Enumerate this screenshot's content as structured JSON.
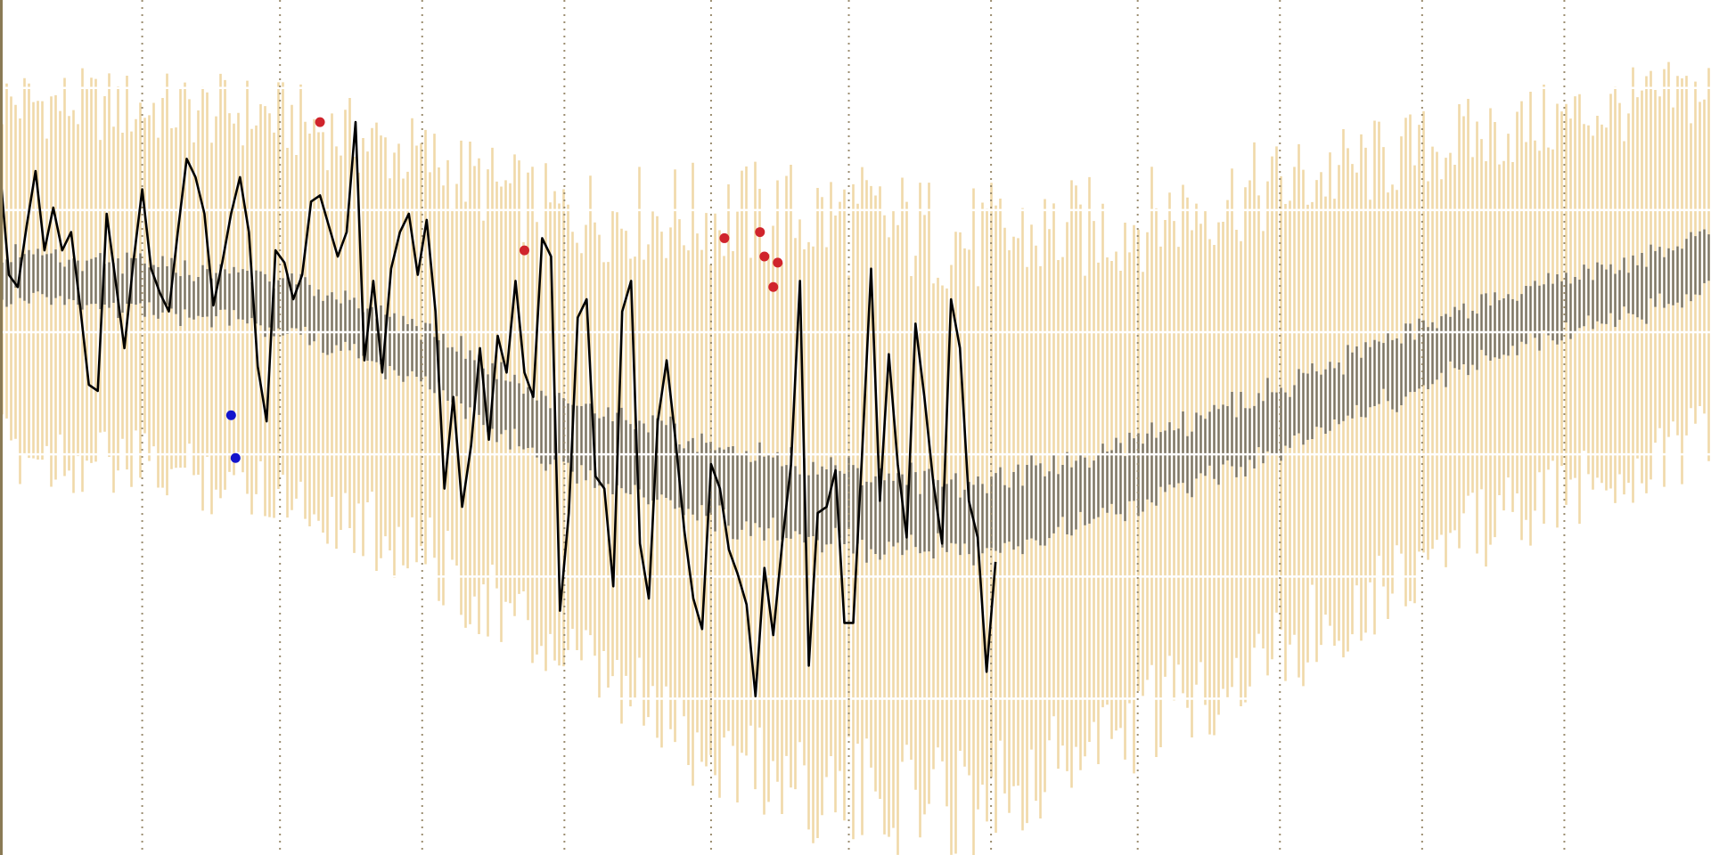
{
  "chart_data": {
    "type": "line",
    "title": "",
    "xlabel": "",
    "ylabel": "",
    "grid": true,
    "xlim": [
      0,
      385
    ],
    "ylim": [
      0,
      7
    ],
    "vertical_markers": [
      32,
      63,
      95,
      127,
      160,
      191,
      223,
      256,
      288,
      320,
      352
    ],
    "horizontal_gridlines": [
      1.28,
      2.28,
      3.28,
      4.28,
      5.28,
      6.28
    ],
    "colors": {
      "outer_band": "#f0d9a8",
      "inner_band": "#7b7567",
      "line": "#000000",
      "high_point": "#d0242c",
      "low_point": "#1414cc",
      "vertical_marker": "#9b8d70",
      "axis": "#8a7a55"
    },
    "bands": {
      "description_keys": [
        "center",
        "inner_half_width",
        "outer_half_width"
      ],
      "control_points": [
        {
          "x": 0,
          "center": 4.75,
          "inner_half_width": 0.18,
          "outer_half_width": 1.5
        },
        {
          "x": 60,
          "center": 4.55,
          "inner_half_width": 0.2,
          "outer_half_width": 1.6
        },
        {
          "x": 95,
          "center": 4.1,
          "inner_half_width": 0.22,
          "outer_half_width": 1.7
        },
        {
          "x": 125,
          "center": 3.45,
          "inner_half_width": 0.26,
          "outer_half_width": 1.9
        },
        {
          "x": 160,
          "center": 3.05,
          "inner_half_width": 0.3,
          "outer_half_width": 2.3
        },
        {
          "x": 190,
          "center": 2.85,
          "inner_half_width": 0.3,
          "outer_half_width": 2.5
        },
        {
          "x": 220,
          "center": 2.75,
          "inner_half_width": 0.28,
          "outer_half_width": 2.4
        },
        {
          "x": 250,
          "center": 3.05,
          "inner_half_width": 0.28,
          "outer_half_width": 2.2
        },
        {
          "x": 290,
          "center": 3.6,
          "inner_half_width": 0.26,
          "outer_half_width": 2.0
        },
        {
          "x": 330,
          "center": 4.25,
          "inner_half_width": 0.24,
          "outer_half_width": 1.7
        },
        {
          "x": 385,
          "center": 4.85,
          "inner_half_width": 0.22,
          "outer_half_width": 1.5
        }
      ]
    },
    "series": [
      {
        "x": [
          0,
          2,
          4,
          6,
          8,
          10,
          12,
          14,
          16,
          18,
          20,
          22,
          24,
          26,
          28,
          30,
          32,
          34,
          36,
          38,
          40,
          42,
          44,
          46,
          48,
          50,
          52,
          54,
          56,
          58,
          60,
          62,
          64,
          66,
          68,
          70,
          72,
          74,
          76,
          78,
          80,
          82,
          84,
          86,
          88,
          90,
          92,
          94,
          96,
          98,
          100,
          102,
          104,
          106,
          108,
          110,
          112,
          114,
          116,
          118,
          120,
          122,
          124,
          126,
          128,
          130,
          132,
          134,
          136,
          138,
          140,
          142,
          144,
          146,
          148,
          150,
          152,
          154,
          156,
          158,
          160,
          162,
          164,
          166,
          168,
          170,
          172,
          174,
          176,
          178,
          180,
          182,
          184,
          186,
          188,
          190,
          192,
          194,
          196,
          198,
          200,
          202,
          204,
          206,
          208,
          210,
          212,
          214,
          216,
          218,
          220,
          222,
          224
        ],
        "values": [
          5.6,
          4.75,
          4.65,
          5.15,
          5.6,
          4.95,
          5.3,
          4.95,
          5.1,
          4.5,
          3.85,
          3.8,
          5.25,
          4.7,
          4.15,
          4.85,
          5.45,
          4.8,
          4.6,
          4.45,
          5.1,
          5.7,
          5.55,
          5.25,
          4.5,
          4.85,
          5.25,
          5.55,
          5.1,
          4.0,
          3.55,
          4.95,
          4.85,
          4.55,
          4.75,
          5.35,
          5.4,
          5.15,
          4.9,
          5.1,
          6.0,
          4.05,
          4.7,
          3.95,
          4.8,
          5.1,
          5.25,
          4.75,
          5.2,
          4.45,
          3.0,
          3.75,
          2.85,
          3.35,
          4.15,
          3.4,
          4.25,
          3.95,
          4.7,
          3.95,
          3.75,
          5.05,
          4.9,
          2.0,
          2.8,
          4.4,
          4.55,
          3.1,
          3.0,
          2.2,
          4.45,
          4.7,
          2.55,
          2.1,
          3.55,
          4.05,
          3.4,
          2.65,
          2.1,
          1.85,
          3.2,
          3.0,
          2.5,
          2.3,
          2.05,
          1.3,
          2.35,
          1.8,
          2.55,
          3.2,
          4.7,
          1.55,
          2.8,
          2.85,
          3.15,
          1.9,
          1.9,
          3.3,
          4.8,
          2.9,
          4.1,
          3.2,
          2.6,
          4.35,
          3.75,
          3.05,
          2.55,
          4.55,
          4.15,
          2.9,
          2.6,
          1.5,
          2.4
        ]
      }
    ],
    "highlight_points": {
      "high": [
        [
          72,
          6.0
        ],
        [
          118,
          4.95
        ],
        [
          163,
          5.05
        ],
        [
          171,
          5.1
        ],
        [
          172,
          4.9
        ],
        [
          174,
          4.65
        ],
        [
          175,
          4.85
        ]
      ],
      "low": [
        [
          52,
          3.6
        ],
        [
          53,
          3.25
        ]
      ]
    }
  }
}
